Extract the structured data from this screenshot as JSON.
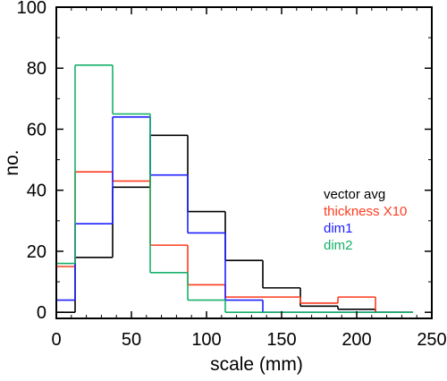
{
  "chart_data": {
    "type": "step",
    "title": "",
    "xlabel": "scale (mm)",
    "ylabel": "no.",
    "xlim": [
      0,
      250
    ],
    "ylim": [
      -2,
      100
    ],
    "xticks": [
      0,
      50,
      100,
      150,
      200,
      250
    ],
    "yticks": [
      0,
      20,
      40,
      60,
      80,
      100
    ],
    "bin_edges": [
      -5,
      12.5,
      37.5,
      62.5,
      87.5,
      112.5,
      137.5,
      162.5,
      187.5,
      212.5,
      237.5
    ],
    "grid": false,
    "legend_position": "right",
    "series": [
      {
        "name": "vector avg",
        "color": "#000000",
        "values": [
          0,
          18,
          41,
          58,
          33,
          17,
          8,
          2,
          1,
          0
        ]
      },
      {
        "name": "thickness X10",
        "color": "#ff3b1f",
        "values": [
          15,
          46,
          43,
          22,
          9,
          5,
          5,
          3,
          5,
          0
        ]
      },
      {
        "name": "dim1",
        "color": "#1f1fff",
        "values": [
          4,
          29,
          64,
          45,
          26,
          4,
          0,
          0,
          0,
          0
        ]
      },
      {
        "name": "dim2",
        "color": "#17b06a",
        "values": [
          16,
          81,
          65,
          13,
          4,
          0,
          0,
          0,
          0,
          0
        ]
      }
    ]
  }
}
